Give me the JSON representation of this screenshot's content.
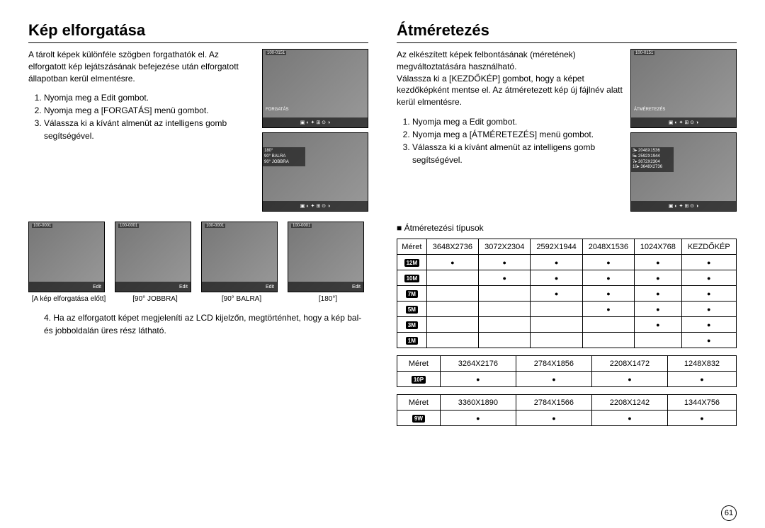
{
  "page_number": "61",
  "left": {
    "title": "Kép elforgatása",
    "intro": "A tárolt képek különféle szögben forgathatók el. Az elforgatott kép lejátszásának befejezése után elforgatott állapotban kerül elmentésre.",
    "steps": [
      "Nyomja meg a Edit gombot.",
      "Nyomja meg a [FORGATÁS] menü gombot.",
      "Válassza ki a kívánt almenüt az intelligens gomb segítségével."
    ],
    "screenshot1": {
      "folder": "100-0151",
      "label": "FORGATÁS"
    },
    "screenshot2": {
      "opts": [
        "180°",
        "90° BALRA",
        "90° JOBBRA"
      ]
    },
    "thumbs": [
      {
        "folder": "100-0001",
        "caption": "[A kép elforgatása előtt]"
      },
      {
        "folder": "100-0001",
        "caption": "[90° JOBBRA]"
      },
      {
        "folder": "100-0001",
        "caption": "[90° BALRA]"
      },
      {
        "folder": "100-0001",
        "caption": "[180°]"
      }
    ],
    "note": "4. Ha az elforgatott képet megjeleníti az LCD kijelzőn, megtörténhet, hogy a kép bal- és jobboldalán üres rész látható."
  },
  "right": {
    "title": "Átméretezés",
    "intro": "Az elkészített képek felbontásának (méretének) megváltoztatására használható.\nVálassza ki a [KEZDŐKÉP] gombot, hogy a képet kezdőképként mentse el. Az átméretezett kép új fájlnév alatt kerül elmentésre.",
    "steps": [
      "Nyomja meg a Edit gombot.",
      "Nyomja meg a [ÁTMÉRETEZÉS] menü gombot.",
      "Válassza ki a kívánt almenüt az intelligens gomb segítségével."
    ],
    "screenshot1": {
      "folder": "100-0151",
      "label": "ÁTMÉRETEZÉS"
    },
    "screenshot2": {
      "opts": [
        "3▸ 2048X1536",
        "5▸ 2592X1944",
        "7▸ 3072X2304",
        "10▸ 3648X2736"
      ]
    },
    "subhead": "■ Átméretezési típusok",
    "table1": {
      "header": [
        "Méret",
        "3648X2736",
        "3072X2304",
        "2592X1944",
        "2048X1536",
        "1024X768",
        "KEZDŐKÉP"
      ],
      "rows": [
        {
          "label": "12M",
          "dots": [
            true,
            true,
            true,
            true,
            true,
            true
          ]
        },
        {
          "label": "10M",
          "dots": [
            false,
            true,
            true,
            true,
            true,
            true
          ]
        },
        {
          "label": "7M",
          "dots": [
            false,
            false,
            true,
            true,
            true,
            true
          ]
        },
        {
          "label": "5M",
          "dots": [
            false,
            false,
            false,
            true,
            true,
            true
          ]
        },
        {
          "label": "3M",
          "dots": [
            false,
            false,
            false,
            false,
            true,
            true
          ]
        },
        {
          "label": "1M",
          "dots": [
            false,
            false,
            false,
            false,
            false,
            true
          ]
        }
      ]
    },
    "table2": {
      "header": [
        "Méret",
        "3264X2176",
        "2784X1856",
        "2208X1472",
        "1248X832"
      ],
      "rows": [
        {
          "label": "10P",
          "dots": [
            true,
            true,
            true,
            true
          ]
        }
      ]
    },
    "table3": {
      "header": [
        "Méret",
        "3360X1890",
        "2784X1566",
        "2208X1242",
        "1344X756"
      ],
      "rows": [
        {
          "label": "9W",
          "dots": [
            true,
            true,
            true,
            true
          ]
        }
      ]
    }
  }
}
